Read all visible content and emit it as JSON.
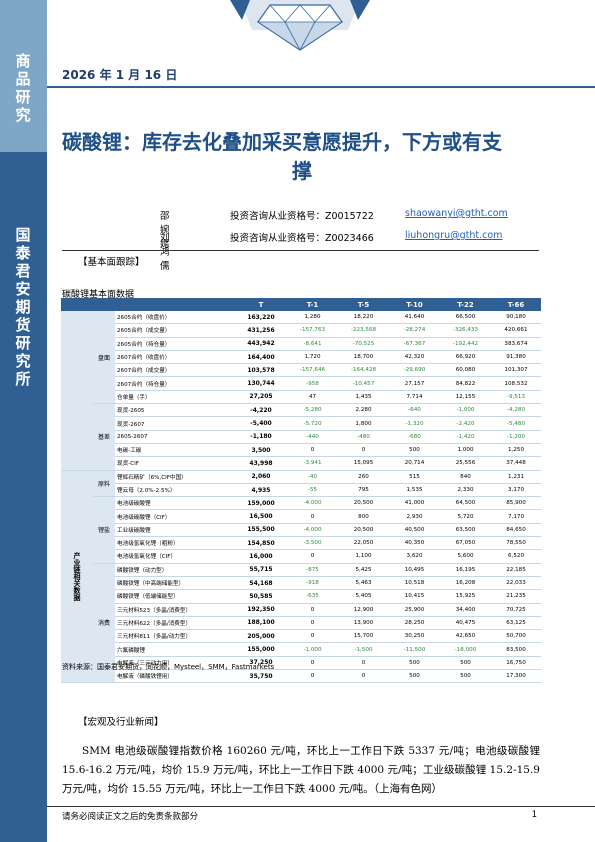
{
  "sidebar": {
    "top_label": "商品研究",
    "company": "国泰君安期货研究所"
  },
  "report": {
    "date": "2026 年 1 月 16 日",
    "title_line1": "碳酸锂：库存去化叠加采买意愿提升，下方或有支",
    "title_line2": "撑"
  },
  "analysts": [
    {
      "name": "邵婉嫕",
      "cert": "投资咨询从业资格号：Z0015722",
      "email": "shaowanyi@gtht.com"
    },
    {
      "name": "刘鸿儒",
      "cert": "投资咨询从业资格号：Z0023466",
      "email": "liuhongru@gtht.com"
    }
  ],
  "section_fundamentals": "【基本面跟踪】",
  "table_title": "碳酸锂基本面数据",
  "table": {
    "headers": [
      "",
      "",
      "",
      "T",
      "T-1",
      "T-5",
      "T-10",
      "T-22",
      "T-66"
    ],
    "rows": [
      {
        "item": "2605合约（收盘价）",
        "T": "163,220",
        "T1": "1,280",
        "T5": "18,220",
        "T10": "41,640",
        "T22": "66,500",
        "T66": "90,180"
      },
      {
        "item": "2605合约（成交量）",
        "T": "431,256",
        "T1": "-157,763",
        "T5": "-223,568",
        "T10": "-28,274",
        "T22": "-326,433",
        "T66": "420,661"
      },
      {
        "item": "2605合约（持仓量）",
        "T": "443,942",
        "T1": "-8,641",
        "T5": "-70,525",
        "T10": "-67,367",
        "T22": "-192,442",
        "T66": "383,674"
      },
      {
        "item": "2607合约（收盘价）",
        "T": "164,400",
        "T1": "1,720",
        "T5": "18,700",
        "T10": "42,320",
        "T22": "66,920",
        "T66": "91,380"
      },
      {
        "item": "2607合约（成交量）",
        "T": "103,578",
        "T1": "-157,646",
        "T5": "-164,428",
        "T10": "-29,690",
        "T22": "60,080",
        "T66": "101,307"
      },
      {
        "item": "2607合约（持仓量）",
        "T": "130,744",
        "T1": "-958",
        "T5": "-10,457",
        "T10": "27,157",
        "T22": "84,822",
        "T66": "108,532"
      },
      {
        "item": "仓单量（手）",
        "T": "27,205",
        "T1": "47",
        "T5": "1,435",
        "T10": "7,714",
        "T22": "12,155",
        "T66": "-9,513"
      },
      {
        "item": "现货-2605",
        "T": "-4,220",
        "T1": "-5,280",
        "T5": "2,280",
        "T10": "-640",
        "T22": "-1,000",
        "T66": "-4,280"
      },
      {
        "item": "现货-2607",
        "T": "-5,400",
        "T1": "-5,720",
        "T5": "1,800",
        "T10": "-1,320",
        "T22": "-2,420",
        "T66": "-5,480"
      },
      {
        "item": "2605-2607",
        "T": "-1,180",
        "T1": "-440",
        "T5": "-480",
        "T10": "-680",
        "T22": "-1,420",
        "T66": "-1,200"
      },
      {
        "item": "电碳-工碳",
        "T": "3,500",
        "T1": "0",
        "T5": "0",
        "T10": "500",
        "T22": "1,000",
        "T66": "1,250"
      },
      {
        "item": "现货-CIF",
        "T": "43,998",
        "T1": "-3,941",
        "T5": "15,095",
        "T10": "20,714",
        "T22": "25,556",
        "T66": "37,448"
      },
      {
        "item": "锂辉石精矿（6%,CIF中国）",
        "T": "2,060",
        "T1": "-40",
        "T5": "260",
        "T10": "515",
        "T22": "840",
        "T66": "1,231"
      },
      {
        "item": "锂云母（2.0%-2.5%）",
        "T": "4,935",
        "T1": "-55",
        "T5": "795",
        "T10": "1,535",
        "T22": "2,330",
        "T66": "3,170"
      },
      {
        "item": "电池级碳酸锂",
        "T": "159,000",
        "T1": "-4,000",
        "T5": "20,500",
        "T10": "41,000",
        "T22": "64,500",
        "T66": "85,900"
      },
      {
        "item": "电池级碳酸锂（CIF）",
        "T": "16,500",
        "T1": "0",
        "T5": "800",
        "T10": "2,930",
        "T22": "5,720",
        "T66": "7,170"
      },
      {
        "item": "工业级碳酸锂",
        "T": "155,500",
        "T1": "-4,000",
        "T5": "20,500",
        "T10": "40,500",
        "T22": "63,500",
        "T66": "84,650"
      },
      {
        "item": "电池级氢氧化锂（粗粉）",
        "T": "154,850",
        "T1": "-3,500",
        "T5": "22,050",
        "T10": "40,350",
        "T22": "67,050",
        "T66": "78,550"
      },
      {
        "item": "电池级氢氧化锂（CIF）",
        "T": "16,000",
        "T1": "0",
        "T5": "1,100",
        "T10": "3,620",
        "T22": "5,600",
        "T66": "6,520"
      },
      {
        "item": "磷酸铁锂（动力型）",
        "T": "55,715",
        "T1": "-875",
        "T5": "5,425",
        "T10": "10,495",
        "T22": "16,195",
        "T66": "22,185"
      },
      {
        "item": "磷酸铁锂（中高端储能型）",
        "T": "54,168",
        "T1": "-918",
        "T5": "5,463",
        "T10": "10,518",
        "T22": "16,208",
        "T66": "22,033"
      },
      {
        "item": "磷酸铁锂（低端储能型）",
        "T": "50,585",
        "T1": "-635",
        "T5": "5,405",
        "T10": "10,415",
        "T22": "15,925",
        "T66": "21,235"
      },
      {
        "item": "三元材料523（多晶/消费型）",
        "T": "192,350",
        "T1": "0",
        "T5": "12,900",
        "T10": "25,900",
        "T22": "34,400",
        "T66": "70,725"
      },
      {
        "item": "三元材料622（多晶/消费型）",
        "T": "188,100",
        "T1": "0",
        "T5": "13,900",
        "T10": "28,250",
        "T22": "40,475",
        "T66": "63,125"
      },
      {
        "item": "三元材料811（多晶/动力型）",
        "T": "205,000",
        "T1": "0",
        "T5": "15,700",
        "T10": "30,250",
        "T22": "42,650",
        "T66": "50,700"
      },
      {
        "item": "六氟磷酸锂",
        "T": "155,000",
        "T1": "-1,000",
        "T5": "-1,500",
        "T10": "-11,500",
        "T22": "-18,000",
        "T66": "83,500"
      },
      {
        "item": "电解液（三元动力用）",
        "T": "37,250",
        "T1": "0",
        "T5": "0",
        "T10": "500",
        "T22": "500",
        "T66": "16,750"
      },
      {
        "item": "电解液（磷酸铁锂用）",
        "T": "35,750",
        "T1": "0",
        "T5": "0",
        "T10": "500",
        "T22": "500",
        "T66": "17,300"
      }
    ],
    "group_labels": {
      "futures": "盘面",
      "basis": "基差",
      "raw": "原料",
      "smelt": "锂盐",
      "consume": "消费",
      "chain": "产业链相关数据"
    }
  },
  "table_note": "资料来源：国泰君安期货，同花顺，Mysteel，SMM，Fastmarkets",
  "section_news": "【宏观及行业新闻】",
  "news_text": "SMM 电池级碳酸锂指数价格 160260 元/吨，环比上一工作日下跌 5337 元/吨；电池级碳酸锂 15.6-16.2 万元/吨，均价 15.9 万元/吨，环比上一工作日下跌 4000 元/吨；工业级碳酸锂 15.2-15.9 万元/吨，均价 15.55 万元/吨，环比上一工作日下跌 4000 元/吨。（上海有色网）",
  "footer": "请务必阅读正文之后的免责条款部分",
  "page_number": "1",
  "colors": {
    "brand": "#2f5f93",
    "title": "#1f4f86",
    "negative": "#2e8b3a"
  }
}
